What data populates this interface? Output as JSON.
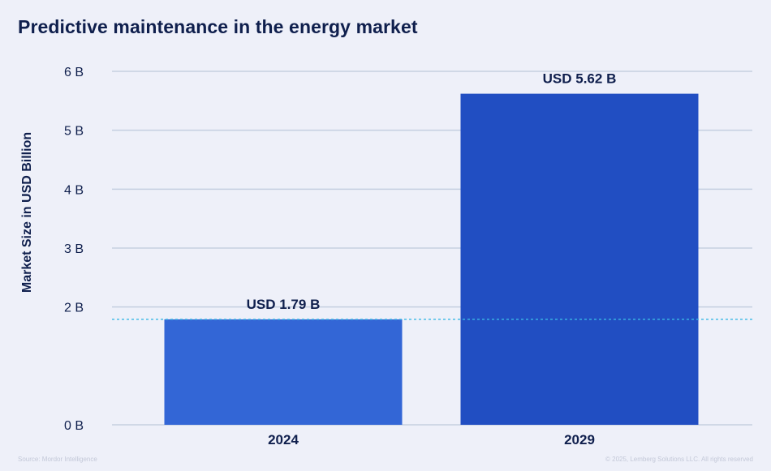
{
  "title": "Predictive maintenance in the energy market",
  "source": "Source: Mordor Intelligence",
  "copyright": "© 2025, Lemberg Solutions LLC. All rights reserved",
  "colors": {
    "bar_2024": "#3366d6",
    "bar_2029": "#214ec2",
    "grid": "#c5cfe0",
    "reference_line": "#3ab8e6",
    "text": "#0f1f4d"
  },
  "chart_data": {
    "type": "bar",
    "title": "Predictive maintenance in the energy market",
    "xlabel": "",
    "ylabel": "Market Size in USD Billion",
    "categories": [
      "2024",
      "2029"
    ],
    "values": [
      1.79,
      5.62
    ],
    "data_labels": [
      "USD 1.79 B",
      "USD 5.62 B"
    ],
    "ylim": [
      0,
      6
    ],
    "yticks": [
      0,
      2,
      3,
      4,
      5,
      6
    ],
    "ytick_labels": [
      "0 B",
      "2 B",
      "3 B",
      "4 B",
      "5 B",
      "6 B"
    ],
    "reference_line": 1.79,
    "grid": true
  }
}
